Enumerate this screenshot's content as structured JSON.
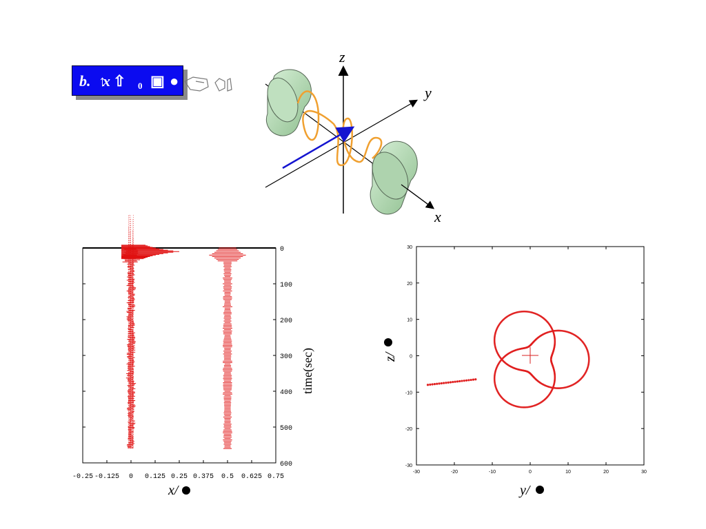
{
  "label": {
    "b": "b.",
    "x": "x",
    "sub": "0"
  },
  "diagram": {
    "axes": [
      "z",
      "y",
      "x"
    ]
  },
  "chart_data": [
    {
      "type": "scatter",
      "xlabel": "x/",
      "ylabel": "time(sec)",
      "xlim": [
        -0.25,
        0.75
      ],
      "ylim": [
        600,
        0
      ],
      "xticks": [
        "-0.25",
        "-0.125",
        "0",
        "0.125",
        "0.25",
        "0.375",
        "0.5",
        "0.625",
        "0.75"
      ],
      "yticks": [
        "0",
        "100",
        "200",
        "300",
        "400",
        "500",
        "600"
      ],
      "grid": false,
      "series": [
        {
          "values": "trace centred near x = 0, spread widest near t = 0 to 30, ending near t = 560"
        },
        {
          "values": "trace centred near x = 0.5, spread widest near t = 20, ending near t = 560"
        }
      ]
    },
    {
      "type": "scatter",
      "xlabel": "y/",
      "ylabel": "z/",
      "xlim": [
        -30,
        30
      ],
      "ylim": [
        -30,
        30
      ],
      "xticks": [
        "-30",
        "-20",
        "-10",
        "0",
        "10",
        "20",
        "30"
      ],
      "yticks": [
        "30",
        "20",
        "10",
        "0",
        "-10",
        "-20",
        "-30"
      ],
      "grid": false,
      "center_marker": [
        0,
        0
      ],
      "series": [
        {
          "values": "approximate rosette-shaped trajectory entering from y = -27, z = -8"
        }
      ]
    }
  ]
}
